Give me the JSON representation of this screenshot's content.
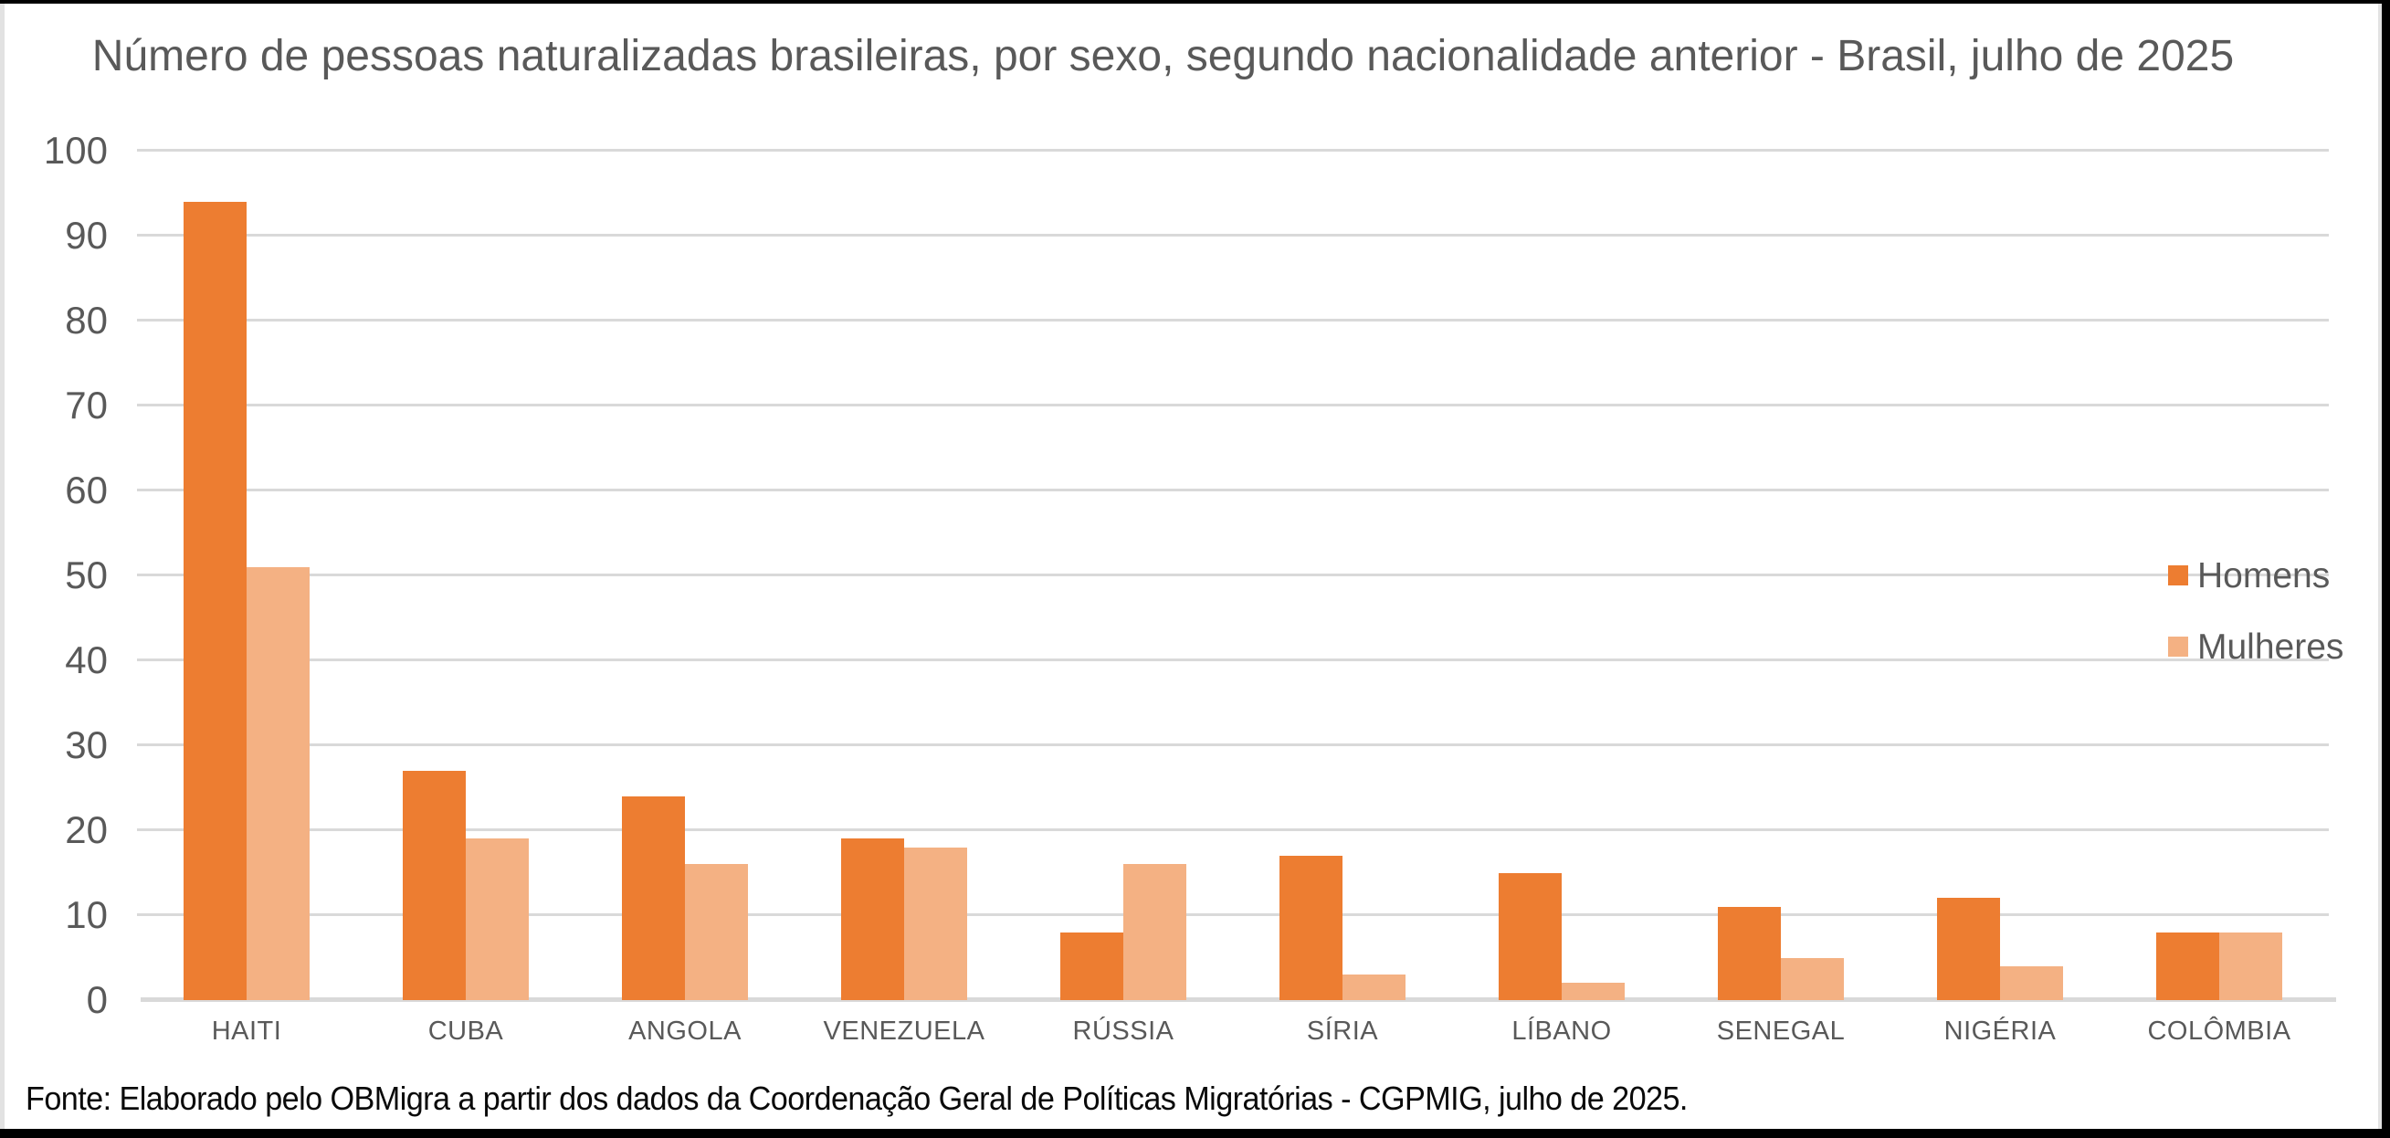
{
  "title": "Número de pessoas naturalizadas brasileiras, por sexo, segundo nacionalidade anterior - Brasil, julho de 2025",
  "source_note": "Fonte: Elaborado pelo OBMigra a partir dos dados da Coordenação Geral de Políticas Migratórias - CGPMIG, julho de 2025.",
  "style": {
    "grid_color": "#d9d9d9",
    "axis_color": "#d9d9d9",
    "text_color": "#595959",
    "note_color": "#0a0a0a",
    "frame_color": "#000000"
  },
  "chart_data": {
    "type": "bar",
    "title": "Número de pessoas naturalizadas brasileiras, por sexo, segundo nacionalidade anterior - Brasil, julho de 2025",
    "categories": [
      "HAITI",
      "CUBA",
      "ANGOLA",
      "VENEZUELA",
      "RÚSSIA",
      "SÍRIA",
      "LÍBANO",
      "SENEGAL",
      "NIGÉRIA",
      "COLÔMBIA"
    ],
    "series": [
      {
        "name": "Homens",
        "color": "#ED7D31",
        "values": [
          94,
          27,
          24,
          19,
          8,
          17,
          15,
          11,
          12,
          8
        ]
      },
      {
        "name": "Mulheres",
        "color": "#F4B183",
        "values": [
          51,
          19,
          16,
          18,
          16,
          3,
          2,
          5,
          4,
          8
        ]
      }
    ],
    "xlabel": "",
    "ylabel": "",
    "ylim": [
      0,
      100
    ],
    "ytick_step": 10,
    "grid": true,
    "legend_position": "right"
  }
}
